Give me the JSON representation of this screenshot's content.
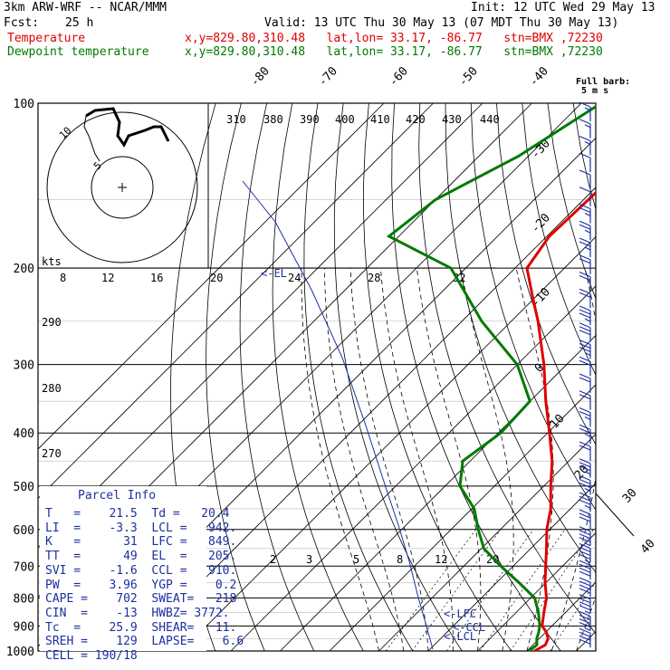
{
  "header": {
    "model": "3km ARW-WRF -- NCAR/MMM",
    "init": "Init: 12 UTC Wed 29 May 13",
    "fcst_label": "Fcst:",
    "fcst_value": "25 h",
    "valid": "Valid: 13 UTC Thu 30 May 13 (07 MDT Thu 30 May 13)",
    "temp_label": "Temperature",
    "dew_label": "Dewpoint temperature",
    "loc": "x,y=829.80,310.48   lat,lon= 33.17, -86.77   stn=BMX ,72230"
  },
  "colors": {
    "temperature": "#e00000",
    "dewpoint": "#007a00",
    "parcel": "#1b2fa0",
    "grid": "#000000"
  },
  "chart_data": {
    "type": "line",
    "title": "",
    "ylabel": "",
    "y_scale": "log-pressure",
    "ylim": [
      1000,
      100
    ],
    "pressure_levels": [
      100,
      200,
      300,
      400,
      500,
      600,
      700,
      800,
      900,
      1000
    ],
    "isotherm_labels": [
      "-80",
      "-70",
      "-60",
      "-50",
      "-40",
      "-30",
      "-20",
      "-10",
      "0",
      "10",
      "20",
      "30",
      "40"
    ],
    "theta_labels": [
      "310",
      "380",
      "390",
      "400",
      "410",
      "420",
      "430",
      "440"
    ],
    "theta_side_labels": [
      "290",
      "280",
      "270"
    ],
    "mixing_ratio_labels": [
      "2",
      "3",
      "5",
      "8",
      "12",
      "20"
    ],
    "wind_axis_labels": [
      "kts",
      "8",
      "12",
      "16",
      "20",
      "24",
      "28",
      "32"
    ],
    "series": [
      {
        "name": "Temperature",
        "pressure": [
          1000,
          975,
          950,
          925,
          900,
          850,
          800,
          750,
          700,
          650,
          600,
          550,
          500,
          450,
          400,
          350,
          300,
          250,
          225,
          200,
          175,
          150,
          125,
          100
        ],
        "temp_c": [
          21.5,
          22.5,
          21.8,
          20.2,
          18.0,
          15.6,
          13.2,
          9.8,
          6.6,
          3.2,
          -0.6,
          -4.0,
          -8.6,
          -13.4,
          -19.6,
          -26.8,
          -34.6,
          -44.6,
          -50.8,
          -57.6,
          -59.5,
          -59.0,
          -58.5,
          -60.5
        ]
      },
      {
        "name": "Dewpoint temperature",
        "pressure": [
          1000,
          975,
          950,
          925,
          900,
          850,
          800,
          750,
          700,
          650,
          600,
          550,
          500,
          450,
          400,
          350,
          300,
          250,
          200,
          175,
          150,
          125,
          100
        ],
        "dewpoint_c": [
          20.4,
          20.8,
          19.5,
          18.6,
          17.5,
          14.5,
          10.8,
          4.5,
          -2.5,
          -9.5,
          -14.5,
          -19.5,
          -27.0,
          -31.5,
          -29.5,
          -30.0,
          -40.0,
          -56.0,
          -73.0,
          -92.0,
          -90.0,
          -82.0,
          -76.0
        ]
      }
    ],
    "wind_barbs_speed_kts": [
      5,
      5,
      5,
      10,
      10,
      10,
      15,
      15,
      15,
      20,
      20,
      20,
      25,
      30,
      25,
      20,
      20,
      20,
      15,
      15,
      20,
      25,
      25,
      25,
      30,
      35,
      35,
      40,
      40,
      35,
      35,
      40
    ]
  },
  "hodograph": {
    "label_5": "5",
    "label_10": "10"
  },
  "barb_legend": {
    "line1": "Full barb:",
    "line2": "5 m s"
  },
  "annotations": {
    "el": "<-EL",
    "lfc": "<-LFC",
    "ccl": "<-CCL",
    "lcl": "<-LCL"
  },
  "parcel_info": {
    "title": "Parcel Info",
    "rows": [
      "T   =    21.5  Td =   20.4",
      "LI  =    -3.3  LCL =   942.",
      "K   =      31  LFC =   849.",
      "TT  =      49  EL  =   205.",
      "SVI =    -1.6  CCL =   910.",
      "PW  =    3.96  YGP =    0.2",
      "CAPE =    702  SWEAT=   218",
      "CIN  =    -13  HWBZ= 3772.",
      "Tc  =    25.9  SHEAR=   11.",
      "SREH =    129  LAPSE=    6.6",
      "CELL = 190/18"
    ]
  }
}
